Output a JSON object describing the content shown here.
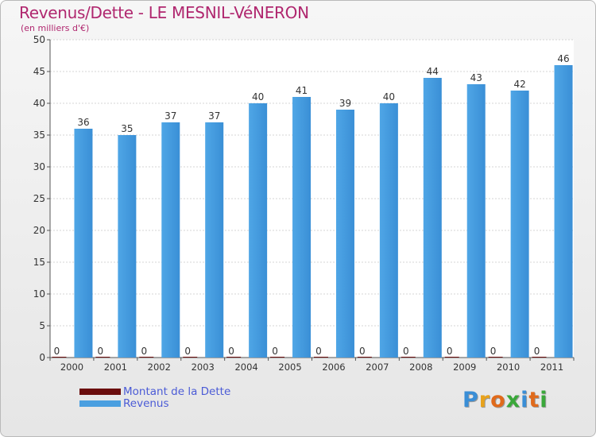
{
  "title": "Revenus/Dette - LE MESNIL-VéNERON",
  "subtitle": "(en milliers d'€)",
  "chart_data": {
    "type": "bar",
    "title": "Revenus/Dette - LE MESNIL-VéNERON",
    "subtitle": "(en milliers d'€)",
    "categories": [
      "2000",
      "2001",
      "2002",
      "2003",
      "2004",
      "2005",
      "2006",
      "2007",
      "2008",
      "2009",
      "2010",
      "2011"
    ],
    "series": [
      {
        "name": "Montant de la Dette",
        "values": [
          0,
          0,
          0,
          0,
          0,
          0,
          0,
          0,
          0,
          0,
          0,
          0
        ],
        "color": "#6b0d0d"
      },
      {
        "name": "Revenus",
        "values": [
          36,
          35,
          37,
          37,
          40,
          41,
          39,
          40,
          44,
          43,
          42,
          46
        ],
        "color": "#4a9fe0"
      }
    ],
    "ylim": [
      0,
      50
    ],
    "yticks": [
      "0",
      "5",
      "10",
      "15",
      "20",
      "25",
      "30",
      "35",
      "40",
      "45",
      "50"
    ],
    "grid": true,
    "legend_position": "bottom-left"
  },
  "legend": [
    {
      "label": "Montant de la Dette",
      "color": "#6b0d0d"
    },
    {
      "label": "Revenus",
      "color": "#4a9fe0"
    }
  ],
  "logo": {
    "text": "Proxiti",
    "letters": [
      {
        "ch": "P",
        "color": "#3a8ed6"
      },
      {
        "ch": "r",
        "color": "#e8a21b"
      },
      {
        "ch": "o",
        "color": "#e06a1b"
      },
      {
        "ch": "x",
        "color": "#3aa83a"
      },
      {
        "ch": "i",
        "color": "#3a8ed6"
      },
      {
        "ch": "t",
        "color": "#e06a1b"
      },
      {
        "ch": "i",
        "color": "#3aa83a"
      }
    ]
  }
}
